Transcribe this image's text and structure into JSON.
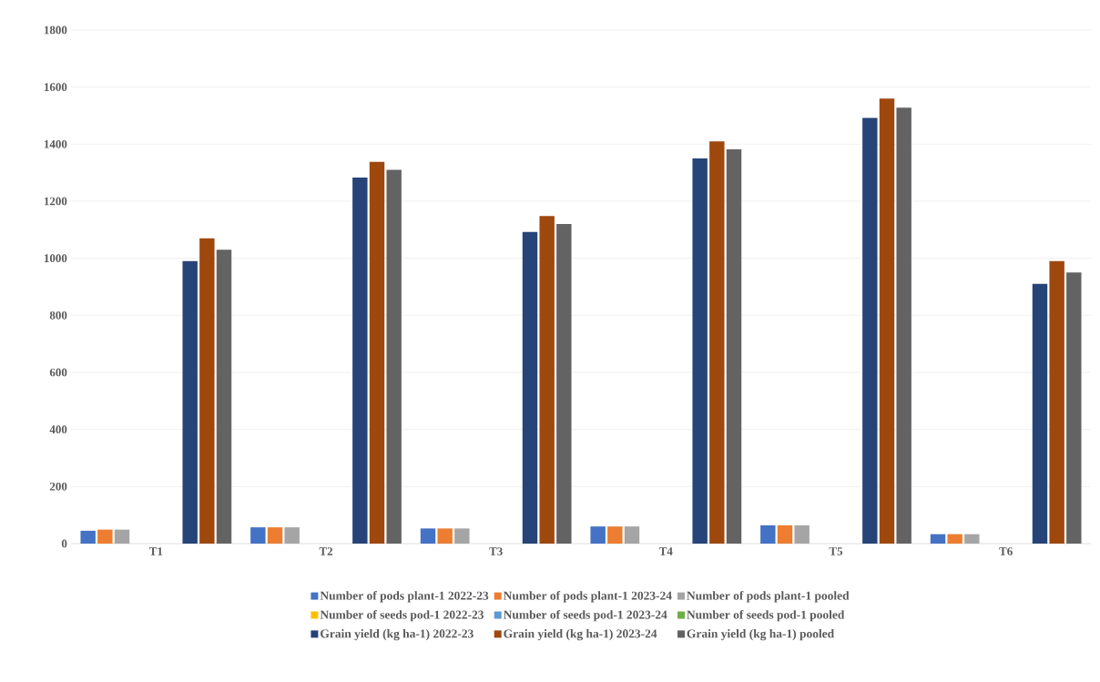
{
  "chart_data": {
    "type": "bar",
    "categories": [
      "T1",
      "T2",
      "T3",
      "T4",
      "T5",
      "T6"
    ],
    "series": [
      {
        "name": "Number of pods plant-1 2022-23",
        "color": "#4472c4",
        "values": [
          45,
          57,
          53,
          60,
          64,
          33
        ]
      },
      {
        "name": "Number of pods plant-1 2023-24",
        "color": "#ed7d31",
        "values": [
          49,
          57,
          53,
          60,
          64,
          33
        ]
      },
      {
        "name": "Number of pods plant-1 pooled",
        "color": "#a5a5a5",
        "values": [
          49,
          57,
          53,
          60,
          64,
          33
        ]
      },
      {
        "name": "Number of seeds pod-1 2022-23",
        "color": "#ffc000",
        "values": [
          0,
          0,
          0,
          0,
          0,
          0
        ]
      },
      {
        "name": "Number of seeds pod-1 2023-24",
        "color": "#5b9bd5",
        "values": [
          0,
          0,
          0,
          0,
          0,
          0
        ]
      },
      {
        "name": "Number of seeds pod-1 pooled",
        "color": "#70ad47",
        "values": [
          0,
          0,
          0,
          0,
          0,
          0
        ]
      },
      {
        "name": "Grain yield (kg ha-1) 2022-23",
        "color": "#264478",
        "values": [
          990,
          1283,
          1092,
          1350,
          1492,
          910
        ]
      },
      {
        "name": "Grain yield (kg ha-1) 2023-24",
        "color": "#9e480e",
        "values": [
          1070,
          1338,
          1148,
          1410,
          1560,
          990
        ]
      },
      {
        "name": "Grain yield (kg ha-1) pooled",
        "color": "#636363",
        "values": [
          1030,
          1310,
          1120,
          1382,
          1528,
          950
        ]
      }
    ],
    "ylim": [
      0,
      1800
    ],
    "yticks": [
      0,
      200,
      400,
      600,
      800,
      1000,
      1200,
      1400,
      1600,
      1800
    ],
    "grid": "y",
    "legend": "bottom"
  }
}
